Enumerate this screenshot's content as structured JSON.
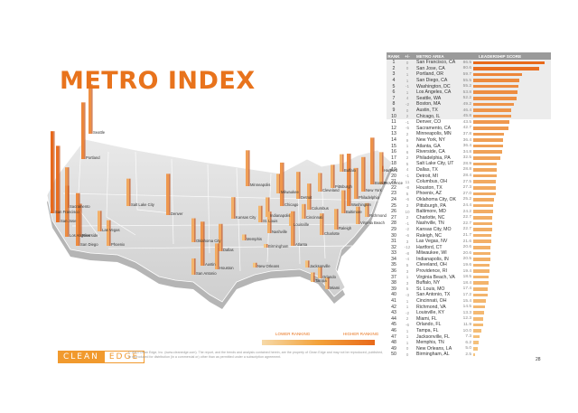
{
  "title": "METRO INDEX",
  "legend": {
    "low": "LOWER RANKING",
    "high": "HIGHER RANKING"
  },
  "logo": {
    "left": "CLEAN",
    "right": "EDGE"
  },
  "copyright": "© 2013 Clean Edge, Inc. (www.cleanedge.com). The report, and the trends and analysis contained herein, are the property of Clean Edge and may not be reproduced, published, or reproduced for distribution (in a commercial or) other than as permitted under a subscription agreement.",
  "page_number": "28",
  "table_headers": {
    "rank": "RANK",
    "delta": "+/-",
    "metro": "METRO AREA",
    "score": "LEADERSHIP SCORE"
  },
  "colors": {
    "accent": "#e8731c",
    "bar_top": "#e8691a",
    "bar_low": "#f6c078"
  },
  "chart_data": {
    "type": "bar",
    "title": "",
    "ylim": [
      0,
      90
    ],
    "rows": [
      {
        "rank": "1",
        "delta": "0",
        "metro": "San Francisco, CA",
        "score": "86.5"
      },
      {
        "rank": "2",
        "delta": "0",
        "metro": "San Jose, CA",
        "score": "80.6"
      },
      {
        "rank": "3",
        "delta": "1",
        "metro": "Portland, OR",
        "score": "59.7"
      },
      {
        "rank": "4",
        "delta": "1",
        "metro": "San Diego, CA",
        "score": "55.5"
      },
      {
        "rank": "5",
        "delta": "-1",
        "metro": "Washington, DC",
        "score": "55.2"
      },
      {
        "rank": "6",
        "delta": "1",
        "metro": "Los Angeles, CA",
        "score": "53.8"
      },
      {
        "rank": "7",
        "delta": "4",
        "metro": "Seattle, WA",
        "score": "52.2"
      },
      {
        "rank": "8",
        "delta": "-2",
        "metro": "Boston, MA",
        "score": "49.2"
      },
      {
        "rank": "9",
        "delta": "0",
        "metro": "Austin, TX",
        "score": "46.4"
      },
      {
        "rank": "10",
        "delta": "2",
        "metro": "Chicago, IL",
        "score": "45.8"
      },
      {
        "rank": "11",
        "delta": "-1",
        "metro": "Denver, CO",
        "score": "43.5"
      },
      {
        "rank": "12",
        "delta": "-5",
        "metro": "Sacramento, CA",
        "score": "42.7"
      },
      {
        "rank": "13",
        "delta": "2",
        "metro": "Minneapolis, MN",
        "score": "37.8"
      },
      {
        "rank": "14",
        "delta": "9",
        "metro": "New York, NY",
        "score": "36.4"
      },
      {
        "rank": "15",
        "delta": "1",
        "metro": "Atlanta, GA",
        "score": "36.4"
      },
      {
        "rank": "16",
        "delta": "6",
        "metro": "Riverside, CA",
        "score": "34.8"
      },
      {
        "rank": "17",
        "delta": "2",
        "metro": "Philadelphia, PA",
        "score": "32.5"
      },
      {
        "rank": "18",
        "delta": "5",
        "metro": "Salt Lake City, UT",
        "score": "28.9"
      },
      {
        "rank": "19",
        "delta": "4",
        "metro": "Dallas, TX",
        "score": "28.8"
      },
      {
        "rank": "20",
        "delta": "-1",
        "metro": "Detroit, MI",
        "score": "28.4"
      },
      {
        "rank": "21",
        "delta": "11",
        "metro": "Columbus, OH",
        "score": "27.5"
      },
      {
        "rank": "22",
        "delta": "-8",
        "metro": "Houston, TX",
        "score": "27.3"
      },
      {
        "rank": "23",
        "delta": "5",
        "metro": "Phoenix, AZ",
        "score": "27.0"
      },
      {
        "rank": "24",
        "delta": "-6",
        "metro": "Oklahoma City, OK",
        "score": "25.2"
      },
      {
        "rank": "25",
        "delta": "3",
        "metro": "Pittsburgh, PA",
        "score": "24.4"
      },
      {
        "rank": "26",
        "delta": "10",
        "metro": "Baltimore, MD",
        "score": "24.2"
      },
      {
        "rank": "27",
        "delta": "2",
        "metro": "Charlotte, NC",
        "score": "22.7"
      },
      {
        "rank": "28",
        "delta": "-1",
        "metro": "Nashville, TN",
        "score": "22.7"
      },
      {
        "rank": "29",
        "delta": "-2",
        "metro": "Kansas City, MO",
        "score": "22.7"
      },
      {
        "rank": "30",
        "delta": "-6",
        "metro": "Raleigh, NC",
        "score": "21.7"
      },
      {
        "rank": "31",
        "delta": "3",
        "metro": "Las Vegas, NV",
        "score": "21.6"
      },
      {
        "rank": "32",
        "delta": "-12",
        "metro": "Hartford, CT",
        "score": "20.6"
      },
      {
        "rank": "33",
        "delta": "-8",
        "metro": "Milwaukee, WI",
        "score": "20.6"
      },
      {
        "rank": "34",
        "delta": "-4",
        "metro": "Indianapolis, IN",
        "score": "20.5"
      },
      {
        "rank": "35",
        "delta": "5",
        "metro": "Cleveland, OH",
        "score": "19.6"
      },
      {
        "rank": "36",
        "delta": "3",
        "metro": "Providence, RI",
        "score": "19.4"
      },
      {
        "rank": "37",
        "delta": "1",
        "metro": "Virginia Beach, VA",
        "score": "18.5"
      },
      {
        "rank": "38",
        "delta": "3",
        "metro": "Buffalo, NY",
        "score": "18.4"
      },
      {
        "rank": "39",
        "delta": "5",
        "metro": "St. Louis, MO",
        "score": "17.4"
      },
      {
        "rank": "40",
        "delta": "-3",
        "metro": "San Antonio, TX",
        "score": "17.2"
      },
      {
        "rank": "41",
        "delta": "1",
        "metro": "Cincinnati, OH",
        "score": "15.4"
      },
      {
        "rank": "42",
        "delta": "1",
        "metro": "Richmond, VA",
        "score": "14.5"
      },
      {
        "rank": "43",
        "delta": "-2",
        "metro": "Louisville, KY",
        "score": "13.3"
      },
      {
        "rank": "44",
        "delta": "2",
        "metro": "Miami, FL",
        "score": "12.3"
      },
      {
        "rank": "45",
        "delta": "-6",
        "metro": "Orlando, FL",
        "score": "11.9"
      },
      {
        "rank": "46",
        "delta": "1",
        "metro": "Tampa, FL",
        "score": "10.0"
      },
      {
        "rank": "47",
        "delta": "1",
        "metro": "Jacksonville, FL",
        "score": "7.3"
      },
      {
        "rank": "48",
        "delta": "1",
        "metro": "Memphis, TN",
        "score": "6.2"
      },
      {
        "rank": "49",
        "delta": "0",
        "metro": "New Orleans, LA",
        "score": "5.0"
      },
      {
        "rank": "50",
        "delta": "0",
        "metro": "Birmingham, AL",
        "score": "2.5"
      }
    ]
  },
  "map_cities": [
    {
      "name": "Seattle",
      "score": 52.2
    },
    {
      "name": "Portland",
      "score": 59.7
    },
    {
      "name": "San Francisco",
      "score": 86.5
    },
    {
      "name": "San Jose",
      "score": 80.6
    },
    {
      "name": "Sacramento",
      "score": 42.7
    },
    {
      "name": "Riverside",
      "score": 34.8
    },
    {
      "name": "Los Angeles",
      "score": 53.8
    },
    {
      "name": "San Diego",
      "score": 55.5
    },
    {
      "name": "Las Vegas",
      "score": 21.6
    },
    {
      "name": "Phoenix",
      "score": 27.0
    },
    {
      "name": "Salt Lake City",
      "score": 28.9
    },
    {
      "name": "Denver",
      "score": 43.5
    },
    {
      "name": "Minneapolis",
      "score": 37.8
    },
    {
      "name": "Kansas City",
      "score": 22.7
    },
    {
      "name": "Oklahoma City",
      "score": 25.2
    },
    {
      "name": "Dallas",
      "score": 28.8
    },
    {
      "name": "Austin",
      "score": 46.4
    },
    {
      "name": "San Antonio",
      "score": 17.2
    },
    {
      "name": "Houston",
      "score": 27.3
    },
    {
      "name": "New Orleans",
      "score": 5.0
    },
    {
      "name": "Memphis",
      "score": 6.2
    },
    {
      "name": "Birmingham",
      "score": 2.5
    },
    {
      "name": "Milwaukee",
      "score": 20.6
    },
    {
      "name": "Chicago",
      "score": 45.8
    },
    {
      "name": "St. Louis",
      "score": 17.4
    },
    {
      "name": "Indianapolis",
      "score": 20.5
    },
    {
      "name": "Louisville",
      "score": 13.3
    },
    {
      "name": "Nashville",
      "score": 22.7
    },
    {
      "name": "Atlanta",
      "score": 36.4
    },
    {
      "name": "Detroit",
      "score": 28.4
    },
    {
      "name": "Cleveland",
      "score": 19.6
    },
    {
      "name": "Columbus",
      "score": 27.5
    },
    {
      "name": "Cincinnati",
      "score": 15.4
    },
    {
      "name": "Pittsburgh",
      "score": 24.4
    },
    {
      "name": "Buffalo",
      "score": 18.4
    },
    {
      "name": "Charlotte",
      "score": 22.7
    },
    {
      "name": "Raleigh",
      "score": 21.7
    },
    {
      "name": "Richmond",
      "score": 14.5
    },
    {
      "name": "Virginia Beach",
      "score": 18.5
    },
    {
      "name": "Washington",
      "score": 55.2
    },
    {
      "name": "Baltimore",
      "score": 24.2
    },
    {
      "name": "Philadelphia",
      "score": 32.5
    },
    {
      "name": "New York",
      "score": 36.4
    },
    {
      "name": "Hartford",
      "score": 20.6
    },
    {
      "name": "Providence",
      "score": 19.4
    },
    {
      "name": "Boston",
      "score": 49.2
    },
    {
      "name": "Jacksonville",
      "score": 7.3
    },
    {
      "name": "Orlando",
      "score": 11.9
    },
    {
      "name": "Tampa",
      "score": 10.0
    },
    {
      "name": "Miami",
      "score": 12.3
    }
  ]
}
